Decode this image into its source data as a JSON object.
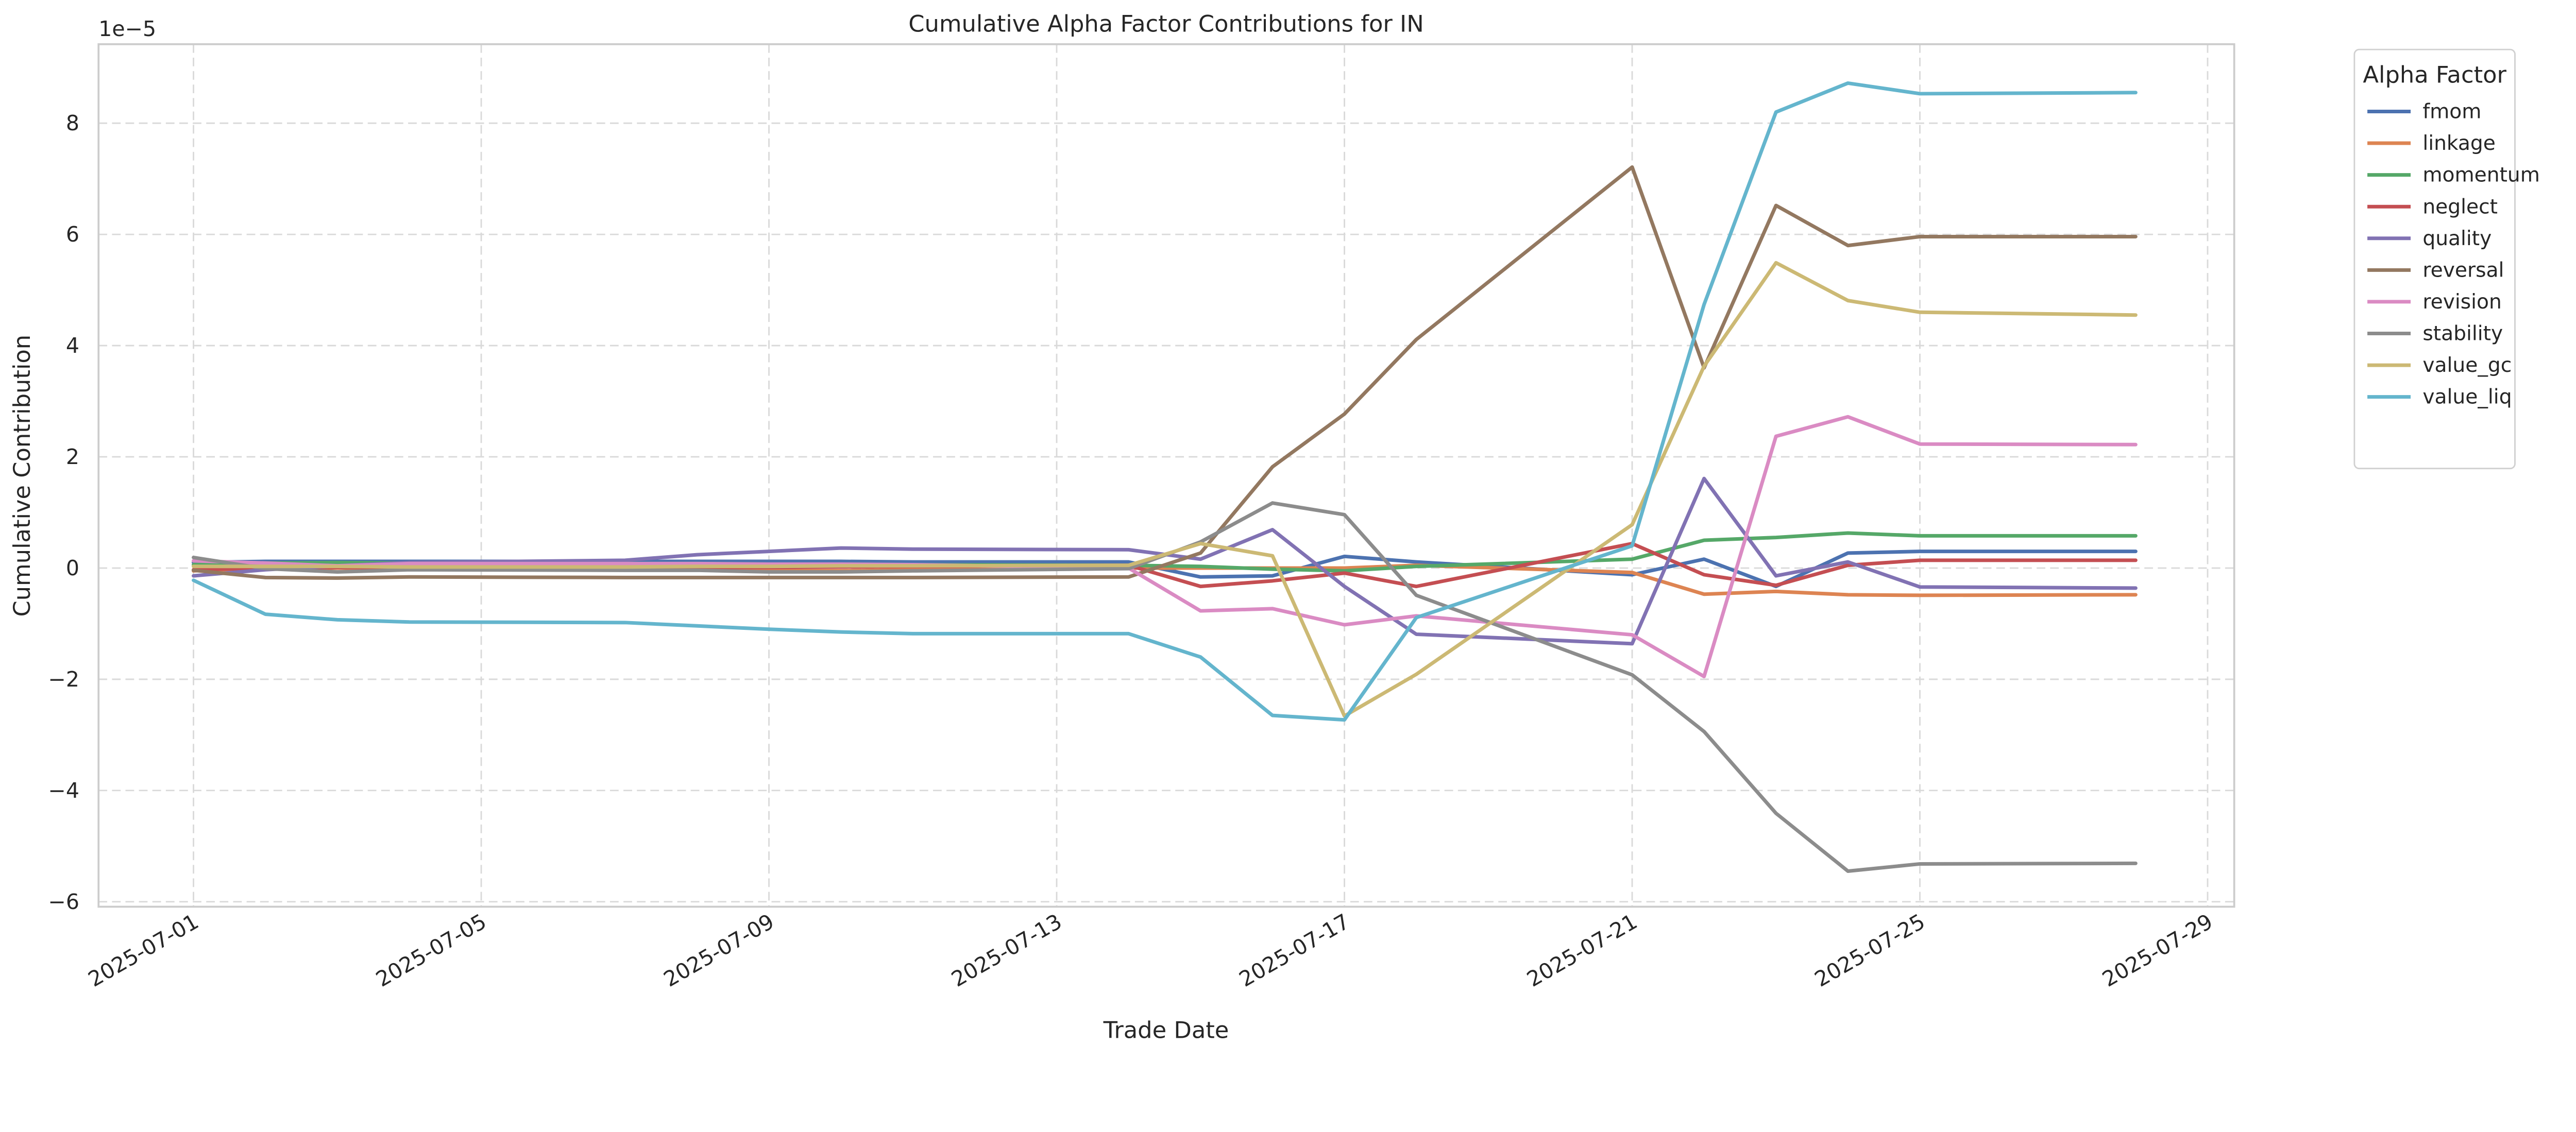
{
  "chart_data": {
    "type": "line",
    "title": "Cumulative Alpha Factor Contributions for IN",
    "xlabel": "Trade Date",
    "ylabel": "Cumulative Contribution",
    "y_multiplier": "1e−5",
    "ylim": [
      -6.09,
      9.42
    ],
    "xlim_days_from_first_tick": [
      -1.32,
      28.37
    ],
    "grid": true,
    "legend_title": "Alpha Factor",
    "legend_position": "outside-top-right",
    "x_ticks": [
      "2025-07-01",
      "2025-07-05",
      "2025-07-09",
      "2025-07-13",
      "2025-07-17",
      "2025-07-21",
      "2025-07-25",
      "2025-07-29"
    ],
    "y_ticks": [
      -6,
      -4,
      -2,
      0,
      2,
      4,
      6,
      8
    ],
    "x": [
      "2025-07-01",
      "2025-07-02",
      "2025-07-03",
      "2025-07-04",
      "2025-07-07",
      "2025-07-08",
      "2025-07-09",
      "2025-07-10",
      "2025-07-11",
      "2025-07-14",
      "2025-07-15",
      "2025-07-16",
      "2025-07-17",
      "2025-07-18",
      "2025-07-21",
      "2025-07-22",
      "2025-07-23",
      "2025-07-24",
      "2025-07-25",
      "2025-07-28"
    ],
    "series": [
      {
        "name": "fmom",
        "color": "#4c72b0",
        "values": [
          0.1,
          0.12,
          0.12,
          0.12,
          0.12,
          0.12,
          0.12,
          0.12,
          0.11,
          0.11,
          -0.16,
          -0.14,
          0.21,
          0.11,
          -0.12,
          0.16,
          -0.33,
          0.27,
          0.3,
          0.3
        ]
      },
      {
        "name": "linkage",
        "color": "#dd8452",
        "values": [
          -0.05,
          0.0,
          0.0,
          0.0,
          0.0,
          -0.02,
          -0.05,
          -0.05,
          -0.03,
          0.0,
          0.0,
          0.0,
          0.0,
          0.05,
          -0.08,
          -0.47,
          -0.42,
          -0.48,
          -0.49,
          -0.48
        ]
      },
      {
        "name": "momentum",
        "color": "#55a868",
        "values": [
          0.06,
          0.09,
          0.1,
          0.09,
          0.08,
          0.08,
          0.07,
          0.07,
          0.06,
          0.05,
          0.03,
          -0.02,
          -0.05,
          0.03,
          0.16,
          0.5,
          0.55,
          0.63,
          0.58,
          0.58
        ]
      },
      {
        "name": "neglect",
        "color": "#c44e52",
        "values": [
          -0.03,
          0.0,
          0.01,
          0.01,
          0.01,
          0.01,
          0.01,
          0.02,
          0.03,
          0.05,
          -0.33,
          -0.23,
          -0.09,
          -0.33,
          0.44,
          -0.12,
          -0.31,
          0.05,
          0.14,
          0.14
        ]
      },
      {
        "name": "quality",
        "color": "#8172b3",
        "values": [
          -0.14,
          -0.03,
          0.04,
          0.1,
          0.14,
          0.24,
          0.3,
          0.36,
          0.34,
          0.33,
          0.16,
          0.69,
          -0.33,
          -1.19,
          -1.36,
          1.61,
          -0.14,
          0.11,
          -0.34,
          -0.36
        ]
      },
      {
        "name": "reversal",
        "color": "#937860",
        "values": [
          -0.04,
          -0.17,
          -0.18,
          -0.16,
          -0.17,
          -0.17,
          -0.17,
          -0.17,
          -0.17,
          -0.16,
          0.27,
          1.82,
          2.77,
          4.11,
          7.21,
          3.6,
          6.52,
          5.8,
          5.96,
          5.96
        ]
      },
      {
        "name": "revision",
        "color": "#da8bc3",
        "values": [
          0.13,
          0.09,
          0.04,
          0.08,
          0.08,
          0.08,
          0.07,
          0.07,
          0.06,
          0.0,
          -0.77,
          -0.73,
          -1.02,
          -0.86,
          -1.2,
          -1.95,
          2.37,
          2.72,
          2.23,
          2.22
        ]
      },
      {
        "name": "stability",
        "color": "#8c8c8c",
        "values": [
          0.19,
          -0.01,
          -0.07,
          -0.03,
          -0.04,
          -0.04,
          -0.07,
          -0.07,
          -0.05,
          -0.01,
          0.47,
          1.17,
          0.96,
          -0.49,
          -1.92,
          -2.94,
          -4.41,
          -5.45,
          -5.32,
          -5.31
        ]
      },
      {
        "name": "value_gc",
        "color": "#ccb974",
        "values": [
          0.03,
          0.03,
          0.03,
          0.02,
          0.02,
          0.03,
          0.03,
          0.04,
          0.04,
          0.05,
          0.44,
          0.22,
          -2.66,
          -1.91,
          0.78,
          3.63,
          5.49,
          4.81,
          4.6,
          4.55
        ]
      },
      {
        "name": "value_liq",
        "color": "#64b5cd",
        "values": [
          -0.22,
          -0.83,
          -0.93,
          -0.97,
          -0.98,
          -1.04,
          -1.1,
          -1.15,
          -1.18,
          -1.18,
          -1.6,
          -2.65,
          -2.73,
          -0.89,
          0.4,
          4.74,
          8.2,
          8.72,
          8.53,
          8.55
        ]
      }
    ]
  }
}
